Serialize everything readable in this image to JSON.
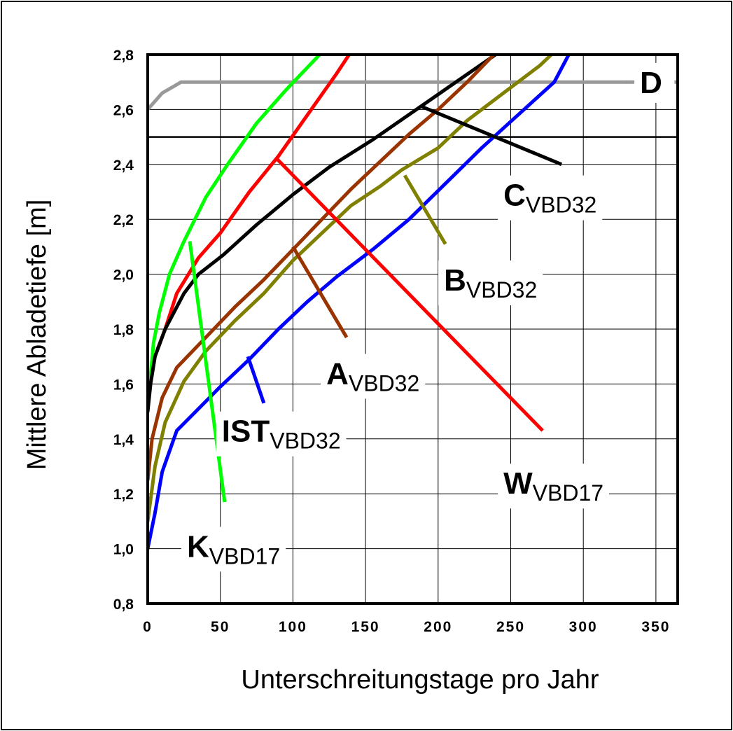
{
  "chart_data": {
    "type": "line",
    "xlabel": "Unterschreitungstage pro Jahr",
    "ylabel": "Mittlere Abladetiefe [m]",
    "xlim": [
      0,
      365
    ],
    "ylim": [
      0.8,
      2.8
    ],
    "x_ticks": [
      0,
      50,
      100,
      150,
      200,
      250,
      300,
      350
    ],
    "x_tick_labels": [
      "0",
      "50",
      "100",
      "150",
      "200",
      "250",
      "300",
      "350"
    ],
    "y_ticks": [
      0.8,
      1.0,
      1.2,
      1.4,
      1.6,
      1.8,
      2.0,
      2.2,
      2.4,
      2.6,
      2.8
    ],
    "y_tick_labels": [
      "0,8",
      "1,0",
      "1,2",
      "1,4",
      "1,6",
      "1,8",
      "2,0",
      "2,2",
      "2,4",
      "2,6",
      "2,8"
    ],
    "grid": true,
    "reference_line": {
      "y": 2.5
    },
    "series": [
      {
        "id": "D",
        "label_main": "D",
        "label_sub": "",
        "color": "#999999",
        "dashed_tail": true,
        "points": [
          [
            0,
            2.6
          ],
          [
            10,
            2.66
          ],
          [
            23,
            2.7
          ],
          [
            330,
            2.7
          ]
        ],
        "tail": [
          [
            365,
            2.7
          ]
        ],
        "label_anchor": [
          339,
          2.66
        ],
        "leader": null
      },
      {
        "id": "K",
        "label_main": "K",
        "label_sub": "VBD17",
        "color": "#00ff00",
        "points": [
          [
            0,
            1.5
          ],
          [
            2,
            1.63
          ],
          [
            4,
            1.75
          ],
          [
            8,
            1.86
          ],
          [
            15,
            2.0
          ],
          [
            25,
            2.12
          ],
          [
            40,
            2.28
          ],
          [
            55,
            2.4
          ],
          [
            75,
            2.55
          ],
          [
            95,
            2.67
          ],
          [
            122,
            2.82
          ]
        ],
        "label_anchor": [
          27,
          0.97
        ],
        "leader": [
          [
            29,
            2.12
          ],
          [
            53,
            1.17
          ]
        ]
      },
      {
        "id": "W",
        "label_main": "W",
        "label_sub": "VBD17",
        "color": "#ff0000",
        "points": [
          [
            7,
            1.73
          ],
          [
            12,
            1.8
          ],
          [
            20,
            1.93
          ],
          [
            35,
            2.06
          ],
          [
            50,
            2.15
          ],
          [
            70,
            2.3
          ],
          [
            90,
            2.43
          ],
          [
            110,
            2.58
          ],
          [
            130,
            2.73
          ],
          [
            145,
            2.85
          ]
        ],
        "label_anchor": [
          245,
          1.2
        ],
        "leader": [
          [
            89,
            2.42
          ],
          [
            272,
            1.43
          ]
        ]
      },
      {
        "id": "C",
        "label_main": "C",
        "label_sub": "VBD32",
        "color": "#000000",
        "points": [
          [
            0,
            1.5
          ],
          [
            2,
            1.6
          ],
          [
            5,
            1.7
          ],
          [
            12,
            1.8
          ],
          [
            25,
            1.93
          ],
          [
            35,
            2.0
          ],
          [
            52,
            2.07
          ],
          [
            75,
            2.18
          ],
          [
            100,
            2.29
          ],
          [
            125,
            2.39
          ],
          [
            155,
            2.49
          ],
          [
            185,
            2.6
          ],
          [
            215,
            2.71
          ],
          [
            245,
            2.82
          ]
        ],
        "label_anchor": [
          245,
          2.25
        ],
        "leader": [
          [
            189,
            2.61
          ],
          [
            285,
            2.4
          ]
        ]
      },
      {
        "id": "A",
        "label_main": "A",
        "label_sub": "VBD32",
        "color": "#993300",
        "points": [
          [
            0,
            1.25
          ],
          [
            3,
            1.4
          ],
          [
            10,
            1.55
          ],
          [
            20,
            1.66
          ],
          [
            40,
            1.77
          ],
          [
            60,
            1.88
          ],
          [
            80,
            1.98
          ],
          [
            100,
            2.09
          ],
          [
            120,
            2.2
          ],
          [
            140,
            2.31
          ],
          [
            160,
            2.41
          ],
          [
            180,
            2.51
          ],
          [
            200,
            2.6
          ],
          [
            220,
            2.7
          ],
          [
            242,
            2.82
          ]
        ],
        "label_anchor": [
          123,
          1.6
        ],
        "leader": [
          [
            100,
            2.1
          ],
          [
            137,
            1.77
          ]
        ]
      },
      {
        "id": "B",
        "label_main": "B",
        "label_sub": "VBD32",
        "color": "#808000",
        "points": [
          [
            0,
            1.1
          ],
          [
            5,
            1.3
          ],
          [
            12,
            1.46
          ],
          [
            25,
            1.61
          ],
          [
            40,
            1.72
          ],
          [
            60,
            1.83
          ],
          [
            80,
            1.93
          ],
          [
            100,
            2.05
          ],
          [
            120,
            2.15
          ],
          [
            140,
            2.25
          ],
          [
            160,
            2.32
          ],
          [
            175,
            2.38
          ],
          [
            200,
            2.46
          ],
          [
            220,
            2.56
          ],
          [
            245,
            2.66
          ],
          [
            270,
            2.76
          ],
          [
            288,
            2.85
          ]
        ],
        "label_anchor": [
          204,
          1.94
        ],
        "leader": [
          [
            177,
            2.36
          ],
          [
            205,
            2.11
          ]
        ]
      },
      {
        "id": "IST",
        "label_main": "IST",
        "label_sub": "VBD32",
        "color": "#0000ff",
        "points": [
          [
            0,
            1.0
          ],
          [
            5,
            1.13
          ],
          [
            10,
            1.28
          ],
          [
            20,
            1.43
          ],
          [
            35,
            1.51
          ],
          [
            50,
            1.59
          ],
          [
            70,
            1.69
          ],
          [
            90,
            1.8
          ],
          [
            110,
            1.9
          ],
          [
            130,
            1.99
          ],
          [
            155,
            2.09
          ],
          [
            180,
            2.2
          ],
          [
            205,
            2.33
          ],
          [
            230,
            2.46
          ],
          [
            255,
            2.58
          ],
          [
            280,
            2.7
          ],
          [
            295,
            2.85
          ]
        ],
        "label_anchor": [
          51,
          1.39
        ],
        "leader": [
          [
            69,
            1.7
          ],
          [
            80,
            1.53
          ]
        ]
      }
    ]
  }
}
